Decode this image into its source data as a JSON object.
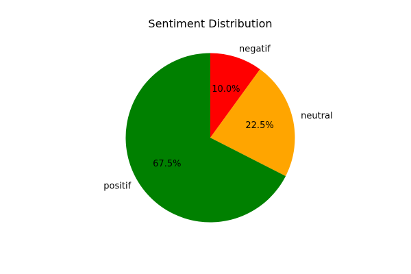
{
  "chart_data": {
    "type": "pie",
    "title": "Sentiment Distribution",
    "slices": [
      {
        "label": "negatif",
        "value": 10.0,
        "percent_label": "10.0%",
        "color": "#ff0000"
      },
      {
        "label": "neutral",
        "value": 22.5,
        "percent_label": "22.5%",
        "color": "#ffa500"
      },
      {
        "label": "positif",
        "value": 67.5,
        "percent_label": "67.5%",
        "color": "#008000"
      }
    ],
    "start_angle_deg": 90,
    "direction": "clockwise"
  }
}
